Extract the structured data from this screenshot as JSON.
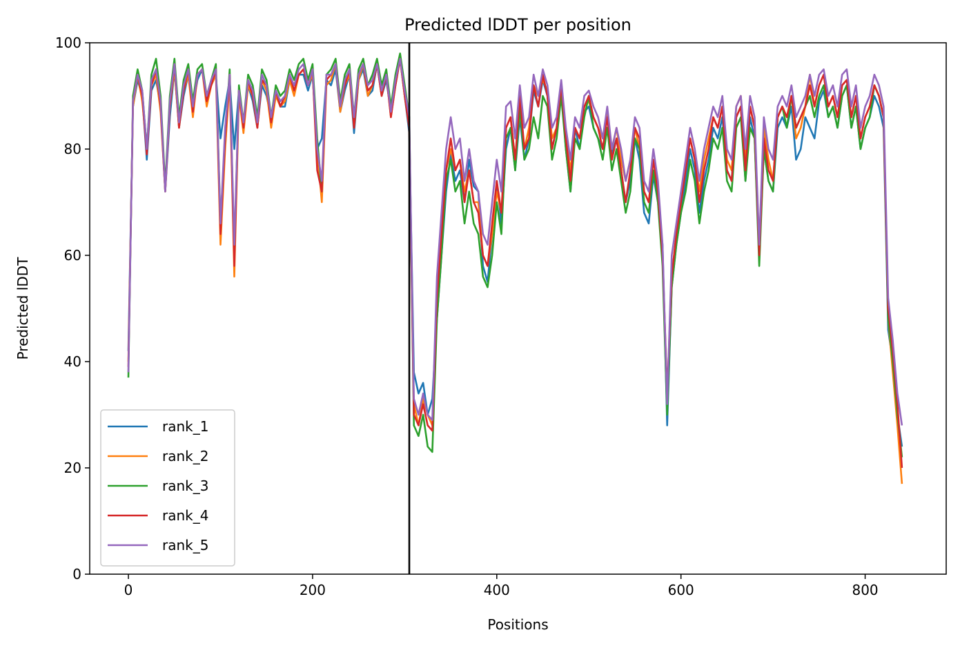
{
  "chart_data": {
    "type": "line",
    "title": "Predicted lDDT per position",
    "xlabel": "Positions",
    "ylabel": "Predicted lDDT",
    "xlim": [
      -42,
      888
    ],
    "ylim": [
      0,
      100
    ],
    "xticks": [
      0,
      200,
      400,
      600,
      800
    ],
    "yticks": [
      0,
      20,
      40,
      60,
      80,
      100
    ],
    "grid": false,
    "legend_position": "lower-left",
    "chain_break_x": 305,
    "x_step": 5,
    "series": [
      {
        "name": "rank_1",
        "color": "#1f77b4",
        "values": [
          42,
          88,
          93,
          90,
          78,
          91,
          93,
          88,
          72,
          86,
          95,
          84,
          90,
          94,
          88,
          93,
          95,
          90,
          92,
          94,
          82,
          88,
          93,
          80,
          91,
          84,
          92,
          89,
          84,
          92,
          90,
          86,
          91,
          88,
          88,
          93,
          92,
          94,
          94,
          91,
          94,
          80,
          82,
          93,
          92,
          95,
          87,
          91,
          94,
          83,
          93,
          95,
          90,
          91,
          96,
          90,
          93,
          87,
          92,
          97,
          90,
          83,
          38,
          34,
          36,
          30,
          33,
          48,
          60,
          72,
          79,
          74,
          76,
          70,
          78,
          73,
          72,
          58,
          55,
          64,
          74,
          66,
          80,
          84,
          76,
          86,
          78,
          82,
          91,
          88,
          93,
          90,
          80,
          84,
          92,
          80,
          72,
          84,
          80,
          87,
          88,
          84,
          82,
          80,
          86,
          79,
          82,
          76,
          70,
          74,
          82,
          78,
          68,
          66,
          75,
          70,
          62,
          28,
          54,
          62,
          68,
          74,
          80,
          76,
          68,
          74,
          78,
          84,
          82,
          86,
          76,
          74,
          86,
          88,
          74,
          86,
          82,
          60,
          80,
          74,
          72,
          84,
          86,
          84,
          88,
          78,
          80,
          86,
          84,
          82,
          89,
          91,
          86,
          88,
          84,
          90,
          92,
          84,
          88,
          80,
          84,
          86,
          90,
          88,
          84,
          46,
          40,
          30,
          24
        ]
      },
      {
        "name": "rank_2",
        "color": "#ff7f0e",
        "values": [
          40,
          88,
          94,
          89,
          80,
          92,
          94,
          87,
          72,
          88,
          95,
          84,
          91,
          94,
          86,
          94,
          95,
          88,
          92,
          94,
          62,
          80,
          93,
          56,
          90,
          83,
          92,
          90,
          84,
          93,
          91,
          84,
          90,
          88,
          89,
          93,
          90,
          94,
          95,
          92,
          94,
          80,
          70,
          92,
          93,
          96,
          87,
          92,
          94,
          84,
          93,
          96,
          90,
          92,
          96,
          90,
          94,
          86,
          92,
          97,
          90,
          84,
          32,
          28,
          33,
          30,
          28,
          50,
          62,
          76,
          80,
          76,
          78,
          72,
          76,
          70,
          70,
          60,
          58,
          64,
          72,
          68,
          84,
          86,
          78,
          87,
          80,
          84,
          92,
          90,
          93,
          91,
          82,
          84,
          92,
          82,
          76,
          84,
          82,
          88,
          89,
          86,
          84,
          82,
          87,
          80,
          84,
          78,
          74,
          78,
          84,
          80,
          72,
          70,
          78,
          72,
          60,
          32,
          56,
          64,
          70,
          76,
          82,
          78,
          72,
          78,
          82,
          86,
          84,
          88,
          78,
          76,
          88,
          90,
          78,
          88,
          84,
          62,
          84,
          78,
          74,
          86,
          88,
          86,
          90,
          82,
          84,
          88,
          94,
          88,
          92,
          94,
          88,
          90,
          86,
          92,
          93,
          86,
          90,
          82,
          86,
          88,
          92,
          90,
          86,
          48,
          38,
          28,
          17
        ]
      },
      {
        "name": "rank_3",
        "color": "#2ca02c",
        "values": [
          37,
          90,
          95,
          91,
          80,
          94,
          97,
          90,
          73,
          90,
          97,
          86,
          93,
          96,
          89,
          95,
          96,
          90,
          93,
          96,
          66,
          82,
          95,
          60,
          92,
          85,
          94,
          92,
          86,
          95,
          93,
          86,
          92,
          90,
          91,
          95,
          93,
          96,
          97,
          93,
          96,
          82,
          72,
          94,
          95,
          97,
          89,
          94,
          96,
          86,
          95,
          97,
          92,
          94,
          97,
          92,
          95,
          88,
          94,
          98,
          92,
          86,
          28,
          26,
          30,
          24,
          23,
          48,
          60,
          74,
          78,
          72,
          74,
          66,
          72,
          66,
          64,
          56,
          54,
          60,
          70,
          64,
          82,
          84,
          76,
          88,
          78,
          80,
          86,
          82,
          90,
          88,
          78,
          82,
          90,
          80,
          72,
          82,
          80,
          86,
          90,
          84,
          82,
          78,
          84,
          76,
          80,
          74,
          68,
          72,
          82,
          80,
          70,
          68,
          76,
          70,
          58,
          30,
          54,
          62,
          68,
          72,
          78,
          74,
          66,
          72,
          76,
          82,
          80,
          84,
          74,
          72,
          84,
          86,
          74,
          84,
          82,
          58,
          80,
          74,
          72,
          86,
          88,
          84,
          90,
          84,
          86,
          88,
          90,
          86,
          90,
          92,
          86,
          88,
          84,
          90,
          92,
          84,
          88,
          80,
          84,
          86,
          92,
          90,
          86,
          48,
          40,
          30,
          22
        ]
      },
      {
        "name": "rank_4",
        "color": "#d62728",
        "values": [
          39,
          89,
          94,
          90,
          79,
          92,
          95,
          88,
          72,
          88,
          96,
          84,
          91,
          95,
          87,
          94,
          95,
          89,
          92,
          95,
          64,
          82,
          94,
          58,
          91,
          84,
          93,
          90,
          84,
          93,
          92,
          85,
          91,
          88,
          90,
          94,
          91,
          94,
          95,
          92,
          95,
          76,
          72,
          93,
          94,
          96,
          88,
          92,
          95,
          84,
          94,
          96,
          91,
          92,
          96,
          90,
          94,
          86,
          92,
          97,
          90,
          84,
          30,
          28,
          32,
          28,
          27,
          52,
          64,
          76,
          82,
          76,
          78,
          70,
          76,
          70,
          68,
          60,
          58,
          66,
          74,
          68,
          84,
          86,
          78,
          90,
          80,
          82,
          92,
          88,
          94,
          90,
          80,
          84,
          92,
          82,
          74,
          84,
          82,
          88,
          90,
          86,
          84,
          80,
          86,
          78,
          82,
          76,
          70,
          76,
          84,
          82,
          72,
          70,
          78,
          72,
          60,
          34,
          56,
          64,
          70,
          76,
          82,
          78,
          70,
          76,
          80,
          86,
          84,
          88,
          76,
          74,
          86,
          88,
          76,
          88,
          84,
          60,
          82,
          76,
          74,
          86,
          88,
          86,
          90,
          84,
          86,
          88,
          92,
          88,
          92,
          94,
          88,
          90,
          86,
          92,
          93,
          86,
          90,
          82,
          86,
          88,
          92,
          90,
          86,
          50,
          42,
          32,
          20
        ]
      },
      {
        "name": "rank_5",
        "color": "#9467bd",
        "values": [
          38,
          89,
          94,
          91,
          80,
          93,
          95,
          89,
          72,
          89,
          96,
          85,
          92,
          95,
          88,
          94,
          95,
          90,
          93,
          95,
          66,
          84,
          94,
          62,
          91,
          85,
          93,
          91,
          85,
          94,
          92,
          86,
          91,
          89,
          90,
          94,
          92,
          95,
          96,
          92,
          95,
          80,
          74,
          94,
          94,
          96,
          88,
          93,
          95,
          86,
          94,
          96,
          92,
          93,
          96,
          91,
          94,
          87,
          93,
          97,
          91,
          86,
          33,
          30,
          34,
          30,
          29,
          56,
          68,
          80,
          86,
          80,
          82,
          74,
          80,
          74,
          72,
          64,
          62,
          70,
          78,
          72,
          88,
          89,
          82,
          92,
          84,
          86,
          94,
          90,
          95,
          92,
          84,
          86,
          93,
          84,
          78,
          86,
          84,
          90,
          91,
          88,
          86,
          82,
          88,
          80,
          84,
          80,
          74,
          78,
          86,
          84,
          74,
          72,
          80,
          74,
          62,
          32,
          60,
          66,
          72,
          78,
          84,
          80,
          74,
          80,
          84,
          88,
          86,
          90,
          80,
          78,
          88,
          90,
          80,
          90,
          86,
          62,
          86,
          80,
          78,
          88,
          90,
          88,
          92,
          86,
          88,
          90,
          94,
          90,
          94,
          95,
          90,
          92,
          88,
          94,
          95,
          88,
          92,
          84,
          88,
          90,
          94,
          92,
          88,
          52,
          44,
          34,
          28
        ]
      }
    ]
  }
}
